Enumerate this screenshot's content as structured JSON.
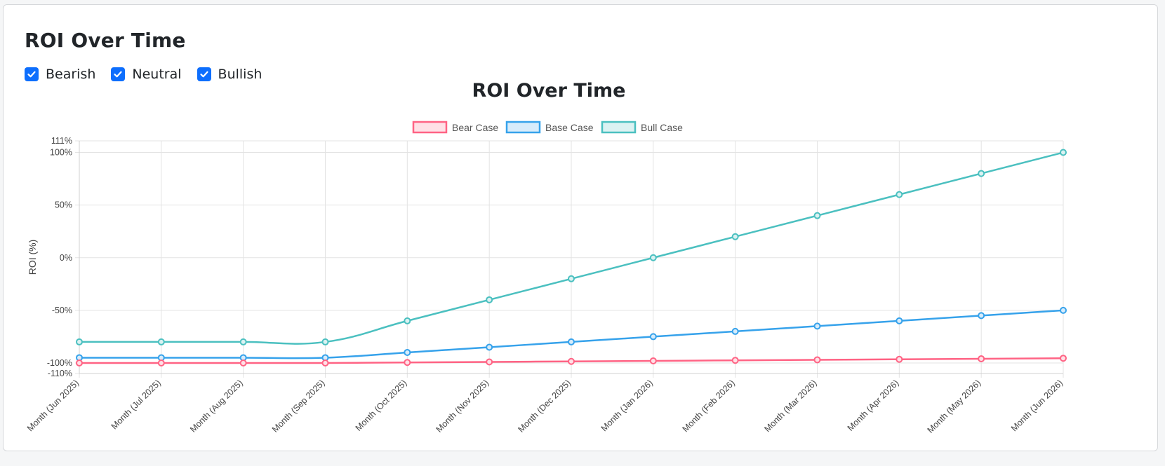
{
  "card": {
    "title": "ROI Over Time",
    "filters": [
      {
        "label": "Bearish",
        "checked": true
      },
      {
        "label": "Neutral",
        "checked": true
      },
      {
        "label": "Bullish",
        "checked": true
      }
    ]
  },
  "chart_data": {
    "type": "line",
    "title": "ROI Over Time",
    "ylabel": "ROI (%)",
    "xlabel": "",
    "ylim": [
      -110,
      111
    ],
    "yticks": [
      "111%",
      "100%",
      "50%",
      "0%",
      "-50%",
      "-100%",
      "-110%"
    ],
    "ytick_values": [
      111,
      100,
      50,
      0,
      -50,
      -100,
      -110
    ],
    "grid": true,
    "legend_position": "top-center",
    "categories": [
      "Month (Jun 2025)",
      "Month (Jul 2025)",
      "Month (Aug 2025)",
      "Month (Sep 2025)",
      "Month (Oct 2025)",
      "Month (Nov 2025)",
      "Month (Dec 2025)",
      "Month (Jan 2026)",
      "Month (Feb 2026)",
      "Month (Mar 2026)",
      "Month (Apr 2026)",
      "Month (May 2026)",
      "Month (Jun 2026)"
    ],
    "series": [
      {
        "name": "Bear Case",
        "color": "#ff6384",
        "fill": "#ffe0e6",
        "values": [
          -100,
          -100,
          -100,
          -100,
          -99.5,
          -99,
          -98.5,
          -98,
          -97.5,
          -97,
          -96.5,
          -96,
          -95.5
        ]
      },
      {
        "name": "Base Case",
        "color": "#36a2eb",
        "fill": "#d7ecfb",
        "values": [
          -95,
          -95,
          -95,
          -95,
          -90,
          -85,
          -80,
          -75,
          -70,
          -65,
          -60,
          -55,
          -50
        ]
      },
      {
        "name": "Bull Case",
        "color": "#4bc0c0",
        "fill": "#dbf2f2",
        "values": [
          -80,
          -80,
          -80,
          -80,
          -60,
          -40,
          -20,
          0,
          20,
          40,
          60,
          80,
          100
        ]
      }
    ]
  }
}
